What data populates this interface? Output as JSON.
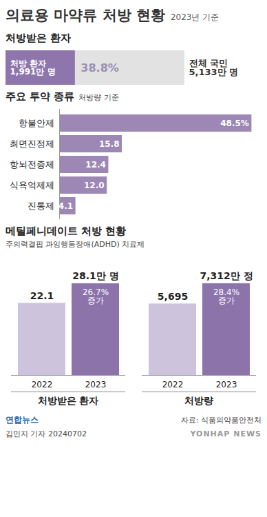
{
  "title": "의료용 마약류 처방 현황",
  "subtitle": "2023년 기준",
  "chart_data": [
    {
      "type": "progress",
      "title": "처방받은 환자",
      "orientation": "horizontal",
      "categories": [
        "처방 환자",
        "전체 국민"
      ],
      "values": [
        1991,
        5133
      ],
      "value_labels": [
        "1,991만 명",
        "5,133만 명"
      ],
      "colors": [
        "#8e76ad",
        "#e2e2e2"
      ],
      "annotations": [
        "38.8%"
      ],
      "xlim": [
        0,
        5133
      ],
      "data_labels": true,
      "tick_labels": false
    },
    {
      "type": "bar",
      "title": "주요 투약 종류",
      "subtitle": "처방량 기준",
      "orientation": "horizontal",
      "categories": [
        "항불안제",
        "최면진정제",
        "항뇌전증제",
        "식욕억제제",
        "진통제"
      ],
      "values": [
        48.5,
        15.8,
        12.4,
        12.0,
        4.1
      ],
      "value_labels": [
        "48.5%",
        "15.8",
        "12.4",
        "12.0",
        "4.1"
      ],
      "color": "#9d87b5",
      "xlim": [
        0,
        50
      ],
      "data_labels": true,
      "tick_labels": "y"
    },
    {
      "type": "group",
      "title": "메틸페니데이트 처방 현황",
      "subtitle": "주의력결핍 과잉행동장애(ADHD) 치료제",
      "charts": [
        {
          "type": "bar",
          "title": "처방받은 환자",
          "categories": [
            "2022",
            "2023"
          ],
          "values": [
            22.1,
            28.1
          ],
          "value_labels": [
            "22.1",
            "28.1만 명"
          ],
          "colors": [
            "#cdc3dd",
            "#8c74ab"
          ],
          "annotations": [
            "26.7% 증가"
          ],
          "ylim": [
            0,
            30
          ],
          "data_labels": true,
          "tick_labels": "x"
        },
        {
          "type": "bar",
          "title": "처방량",
          "categories": [
            "2022",
            "2023"
          ],
          "values": [
            5695,
            7312
          ],
          "value_labels": [
            "5,695",
            "7,312만 정"
          ],
          "colors": [
            "#cdc3dd",
            "#8c74ab"
          ],
          "annotations": [
            "28.4% 증가"
          ],
          "ylim": [
            0,
            7800
          ],
          "data_labels": true,
          "tick_labels": "x"
        }
      ]
    }
  ],
  "credit": "연합뉴스",
  "source": "자료: 식품의약품안전처",
  "byline": "김민지 기자 20240702",
  "watermark": "YONHAP NEWS"
}
